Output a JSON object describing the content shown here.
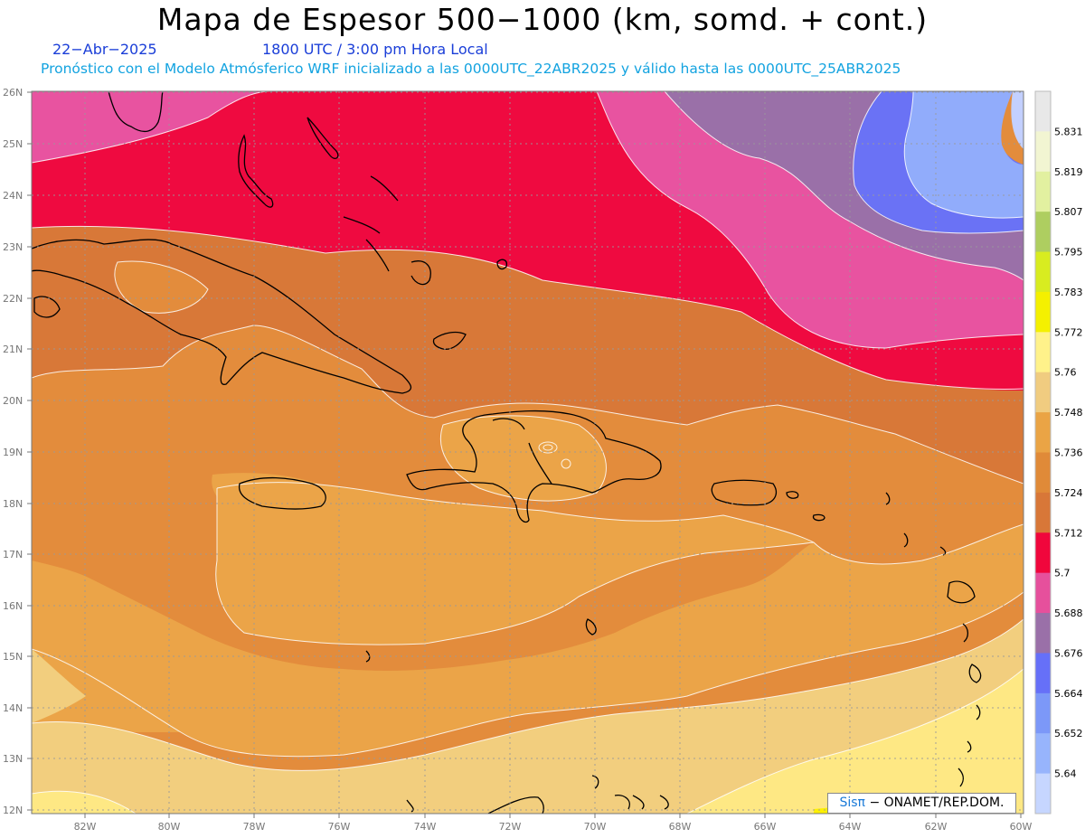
{
  "title": "Mapa de Espesor 500−1000 (km, somd. + cont.)",
  "date": "22−Abr−2025",
  "time": "1800 UTC / 3:00 pm Hora Local",
  "model_line": "Pronóstico con el Modelo Atmósferico WRF inicializado a las 0000UTC_22ABR2025 y válido hasta las  0000UTC_25ABR2025",
  "credit": {
    "brand": "Sisπ",
    "text": "− ONAMET/REP.DOM."
  },
  "lat_labels": [
    "26N",
    "25N",
    "24N",
    "23N",
    "22N",
    "21N",
    "20N",
    "19N",
    "18N",
    "17N",
    "16N",
    "15N",
    "14N",
    "13N",
    "12N"
  ],
  "lon_labels": [
    "82W",
    "80W",
    "78W",
    "76W",
    "74W",
    "72W",
    "70W",
    "68W",
    "66W",
    "64W",
    "62W",
    "60W"
  ],
  "colorbar": {
    "labels": [
      "5.831",
      "5.819",
      "5.807",
      "5.795",
      "5.783",
      "5.772",
      "5.76",
      "5.748",
      "5.736",
      "5.724",
      "5.712",
      "5.7",
      "5.688",
      "5.676",
      "5.664",
      "5.652",
      "5.64"
    ],
    "colors": [
      "#e8e8e8",
      "#f2f5d2",
      "#e2f0a0",
      "#aece60",
      "#d8ec20",
      "#f4f000",
      "#fff28a",
      "#f0cc80",
      "#eaa445",
      "#e08a38",
      "#d87738",
      "#f0063c",
      "#e6509c",
      "#9a70a8",
      "#6670f8",
      "#7c98f8",
      "#97b4fc",
      "#c6d6ff"
    ]
  },
  "colors": {
    "band_5_64": "#c3d0ff",
    "band_5_652": "#91acfb",
    "band_5_664": "#6a72f5",
    "band_5_676": "#9a70a8",
    "band_5_688": "#e853a0",
    "band_5_7": "#ef0a40",
    "band_5_712": "#d87838",
    "band_5_724": "#e38c3c",
    "band_5_736": "#eba448",
    "band_5_748": "#f2ce7e",
    "band_5_76": "#fee884",
    "band_5_772": "#fff100"
  }
}
